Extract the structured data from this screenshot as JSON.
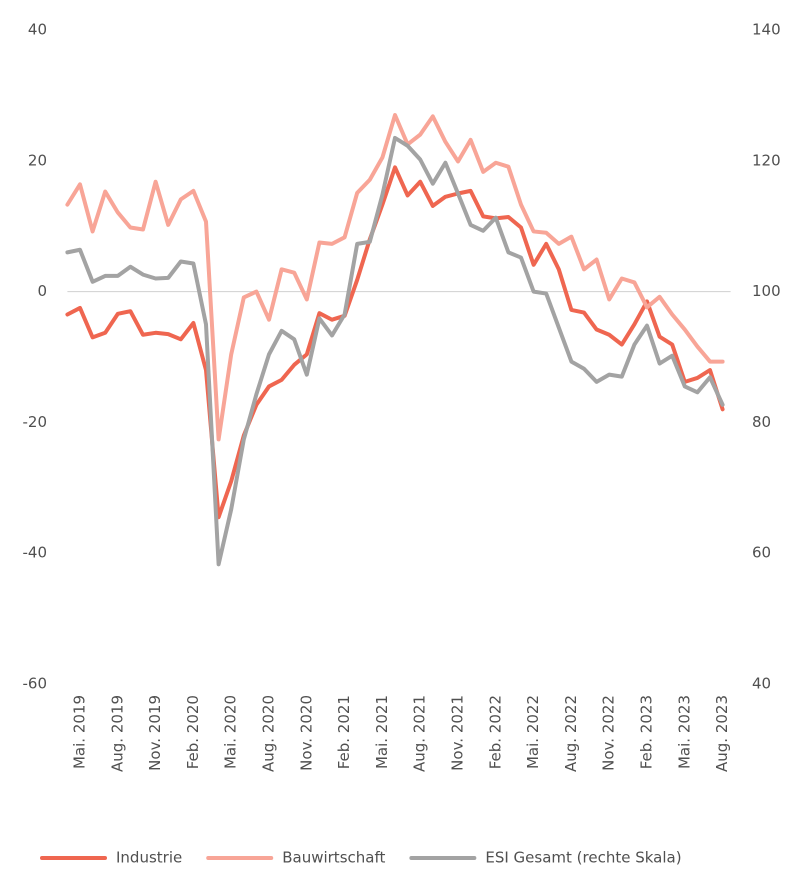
{
  "chart_data": {
    "type": "line",
    "categories": [
      null,
      "Mai. 2019",
      null,
      null,
      "Aug. 2019",
      null,
      null,
      "Nov. 2019",
      null,
      null,
      "Feb. 2020",
      null,
      null,
      "Mai. 2020",
      null,
      null,
      "Aug. 2020",
      null,
      null,
      "Nov. 2020",
      null,
      null,
      "Feb. 2021",
      null,
      null,
      "Mai. 2021",
      null,
      null,
      "Aug. 2021",
      null,
      null,
      "Nov. 2021",
      null,
      null,
      "Feb. 2022",
      null,
      null,
      "Mai. 2022",
      null,
      null,
      "Aug. 2022",
      null,
      null,
      "Nov. 2022",
      null,
      null,
      "Feb. 2023",
      null,
      null,
      "Mai. 2023",
      null,
      null,
      "Aug. 2023"
    ],
    "series": [
      {
        "name": "Industrie",
        "color": "#ef6650",
        "values": [
          -3.5,
          -2.5,
          -7,
          -6.3,
          -3.4,
          -3,
          -6.6,
          -6.3,
          -6.5,
          -7.3,
          -4.8,
          -12,
          -34.5,
          -29,
          -22,
          -17.3,
          -14.5,
          -13.5,
          -11.2,
          -9.6,
          -3.3,
          -4.3,
          -3.7,
          1.8,
          8,
          13.3,
          19,
          14.7,
          16.8,
          13.1,
          14.5,
          15,
          15.4,
          11.5,
          11.2,
          11.4,
          9.8,
          4.1,
          7.3,
          3.4,
          -2.8,
          -3.2,
          -5.8,
          -6.6,
          -8.1,
          -5,
          -1.5,
          -6.9,
          -8.1,
          -13.8,
          -13.2,
          -12,
          -18
        ]
      },
      {
        "name": "Bauwirtschaft",
        "color": "#f8a597",
        "values": [
          13.3,
          16.4,
          9.2,
          15.3,
          12.1,
          9.8,
          9.5,
          16.8,
          10.2,
          14.1,
          15.4,
          10.7,
          -22.6,
          -9.6,
          -0.9,
          0,
          -4.3,
          3.4,
          2.9,
          -1.2,
          7.5,
          7.3,
          8.3,
          15.1,
          17.1,
          20.5,
          27,
          22.5,
          24,
          26.8,
          22.9,
          19.9,
          23.2,
          18.3,
          19.7,
          19.1,
          13.3,
          9.2,
          9,
          7.3,
          8.4,
          3.4,
          4.9,
          -1.2,
          2,
          1.4,
          -2.4,
          -0.8,
          -3.5,
          -5.8,
          -8.4,
          -10.7,
          -10.7
        ]
      },
      {
        "name": "ESI Gesamt (rechte Skala)",
        "color": "#a3a3a3",
        "axis": "y2",
        "values": [
          106,
          106.4,
          101.5,
          102.4,
          102.4,
          103.8,
          102.6,
          102,
          102.1,
          104.6,
          104.3,
          95,
          58.3,
          66.7,
          77.4,
          84.3,
          90.4,
          94,
          92.7,
          87.3,
          95.9,
          93.3,
          96.5,
          107.3,
          107.6,
          114.8,
          123.5,
          122.3,
          120.2,
          116.5,
          119.7,
          115,
          110.2,
          109.3,
          111.3,
          106,
          105.2,
          100,
          99.7,
          94.5,
          89.3,
          88.2,
          86.2,
          87.3,
          87,
          91.9,
          94.8,
          89,
          90.2,
          85.5,
          84.6,
          86.9,
          82.7
        ]
      }
    ],
    "ylim": [
      -60,
      40
    ],
    "yticks": [
      -60,
      -40,
      -20,
      0,
      20,
      40
    ],
    "y2lim": [
      40,
      140
    ],
    "y2ticks": [
      40,
      60,
      80,
      100,
      120,
      140
    ],
    "zero_line": true,
    "legend": "bottom"
  }
}
